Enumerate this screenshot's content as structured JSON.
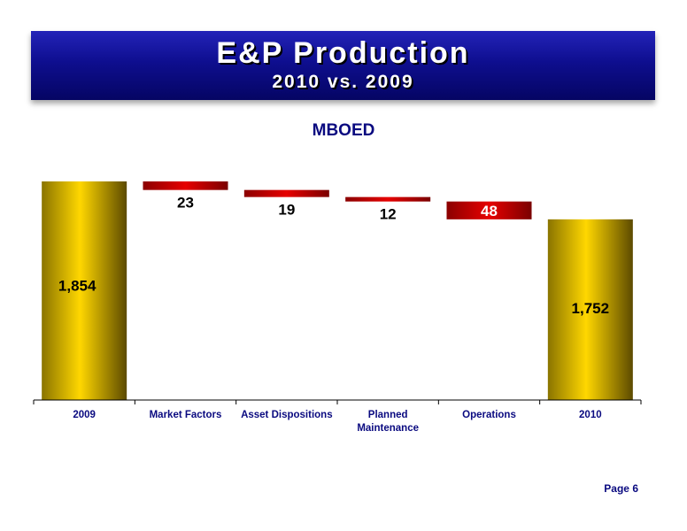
{
  "header": {
    "title": "E&P Production",
    "subtitle": "2010 vs. 2009"
  },
  "unit_label": "MBOED",
  "page": "Page 6",
  "colors": {
    "banner": "#0e0e8f",
    "total_bar": "#d4b400",
    "decrease_bar": "#c00000",
    "axis_text": "#0a0a80"
  },
  "chart_data": {
    "type": "bar",
    "subtype": "waterfall",
    "categories": [
      "2009",
      "Market Factors",
      "Asset Dispositions",
      "Planned Maintenance",
      "Operations",
      "2010"
    ],
    "category_lines": [
      [
        "2009"
      ],
      [
        "Market Factors"
      ],
      [
        "Asset Dispositions"
      ],
      [
        "Planned",
        "Maintenance"
      ],
      [
        "Operations"
      ],
      [
        "2010"
      ]
    ],
    "kinds": [
      "total",
      "decrease",
      "decrease",
      "decrease",
      "decrease",
      "total"
    ],
    "values": [
      1854,
      -23,
      -19,
      -12,
      -48,
      1752
    ],
    "labels": [
      "1,854",
      "23",
      "19",
      "12",
      "48",
      "1,752"
    ],
    "title": "",
    "xlabel": "",
    "ylabel": "MBOED",
    "ylim": [
      0,
      1854
    ],
    "grid": false,
    "legend": "none"
  }
}
